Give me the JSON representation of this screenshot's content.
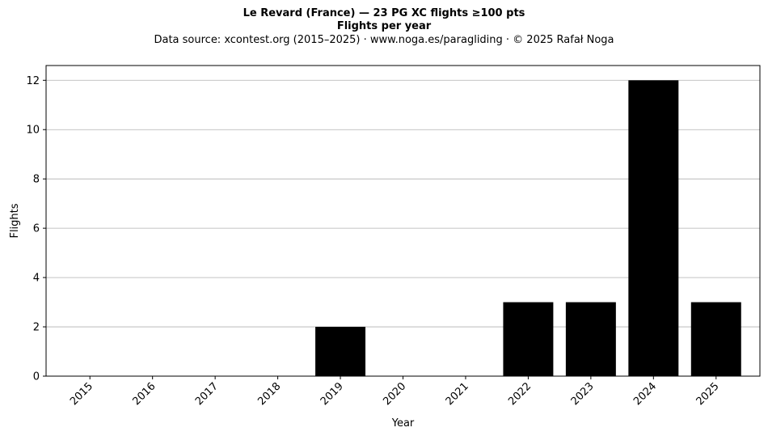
{
  "header": {
    "title": "Le Revard (France)  —  23 PG XC flights ≥100 pts",
    "subtitle": "Flights per year",
    "source": "Data source: xcontest.org (2015–2025)  ·  www.noga.es/paragliding  ·  © 2025 Rafał Noga"
  },
  "chart_data": {
    "type": "bar",
    "title": "Le Revard (France)  —  23 PG XC flights ≥100 pts",
    "subtitle": "Flights per year",
    "xlabel": "Year",
    "ylabel": "Flights",
    "categories": [
      "2015",
      "2016",
      "2017",
      "2018",
      "2019",
      "2020",
      "2021",
      "2022",
      "2023",
      "2024",
      "2025"
    ],
    "values": [
      0,
      0,
      0,
      0,
      2,
      0,
      0,
      3,
      3,
      12,
      3
    ],
    "ylim": [
      0,
      12.6
    ],
    "yticks": [
      0,
      2,
      4,
      6,
      8,
      10,
      12
    ],
    "grid": "horizontal",
    "bar_color": "#000000",
    "grid_color": "#b0b0b0"
  }
}
